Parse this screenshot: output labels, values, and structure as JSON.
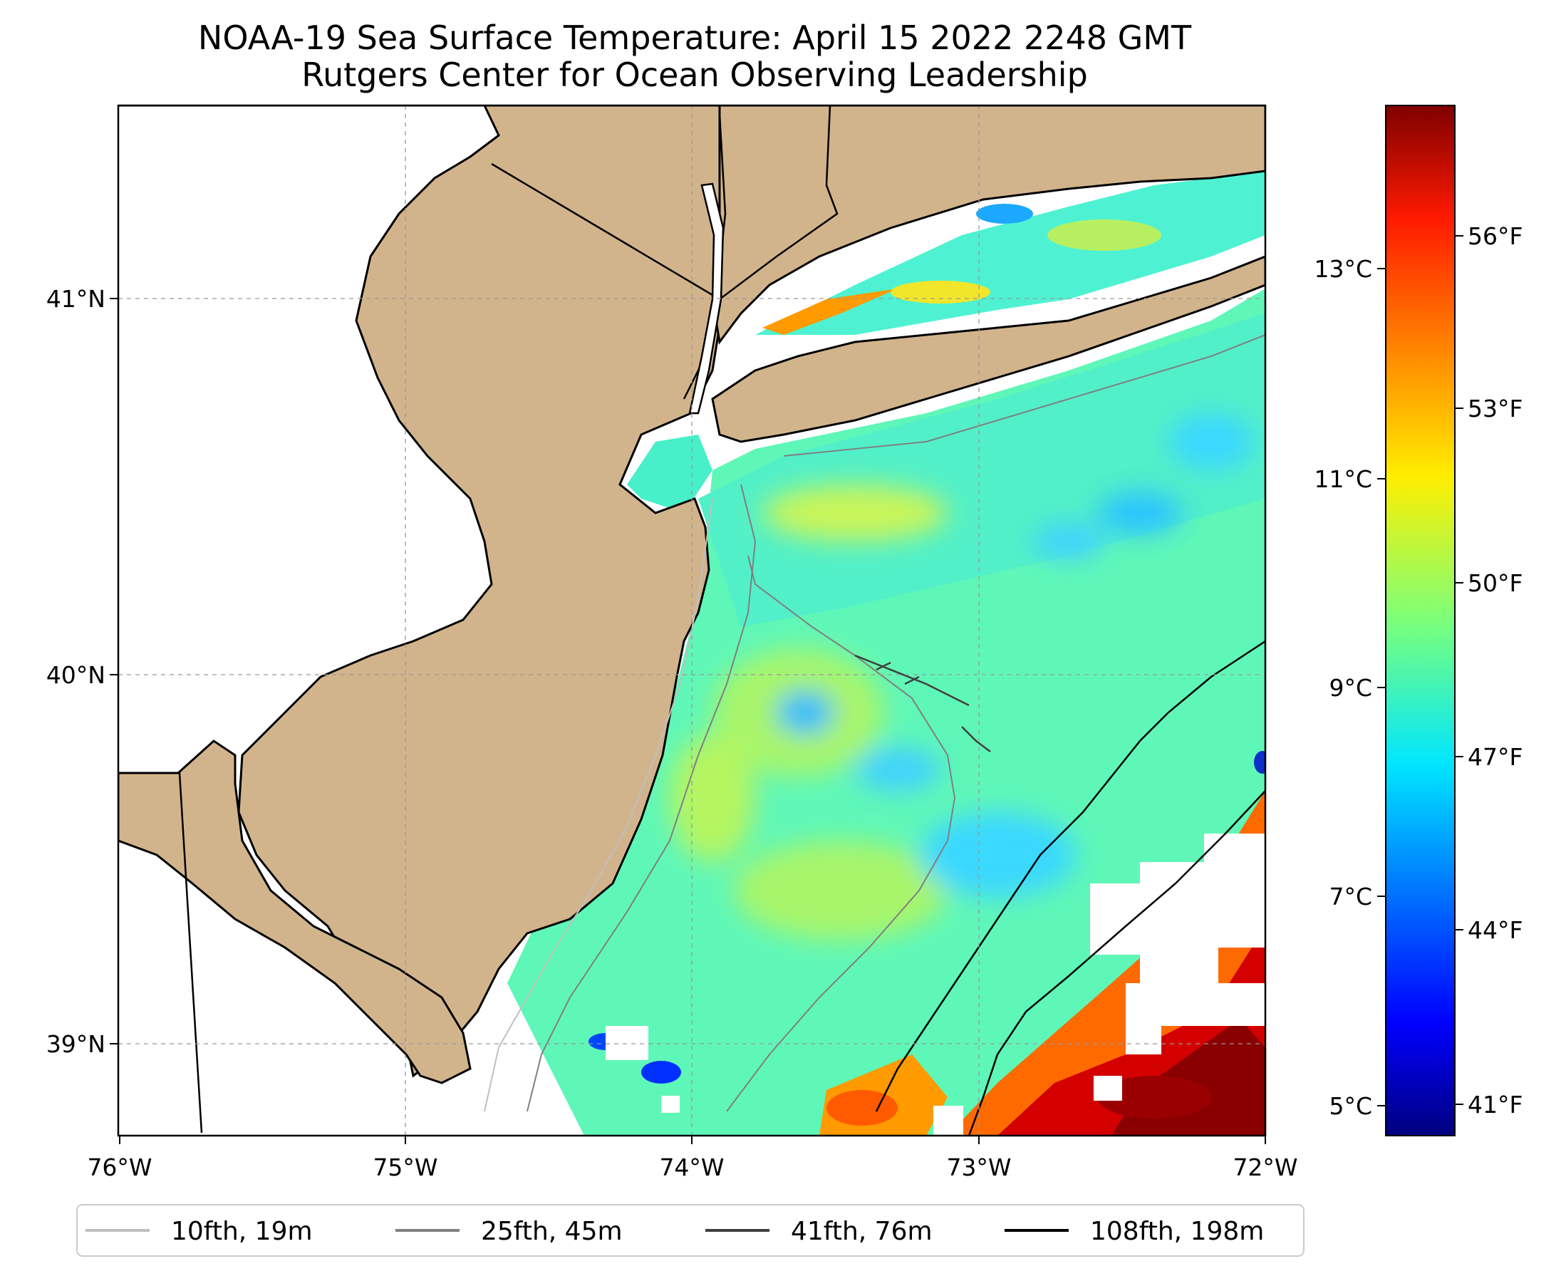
{
  "title": {
    "line1": "NOAA-19 Sea Surface Temperature: April 15 2022 2248 GMT",
    "line2": "Rutgers Center for Ocean Observing Leadership"
  },
  "map": {
    "lon_ticks": [
      "76°W",
      "75°W",
      "74°W",
      "73°W",
      "72°W"
    ],
    "lat_ticks": [
      "41°N",
      "40°N",
      "39°N"
    ],
    "land_color": "#D2B48C",
    "grid": "on (dashed)"
  },
  "colorbar": {
    "colormap": "jet",
    "celsius_ticks": [
      "13°C",
      "11°C",
      "9°C",
      "7°C",
      "5°C"
    ],
    "fahrenheit_ticks": [
      "56°F",
      "53°F",
      "50°F",
      "47°F",
      "44°F",
      "41°F"
    ]
  },
  "legend": {
    "placement": "bottom-center",
    "items": [
      {
        "label": "10fth, 19m",
        "color": "#bfbfbf"
      },
      {
        "label": "25fth, 45m",
        "color": "#808080"
      },
      {
        "label": "41fth, 76m",
        "color": "#404040"
      },
      {
        "label": "108fth, 198m",
        "color": "#000000"
      }
    ]
  }
}
